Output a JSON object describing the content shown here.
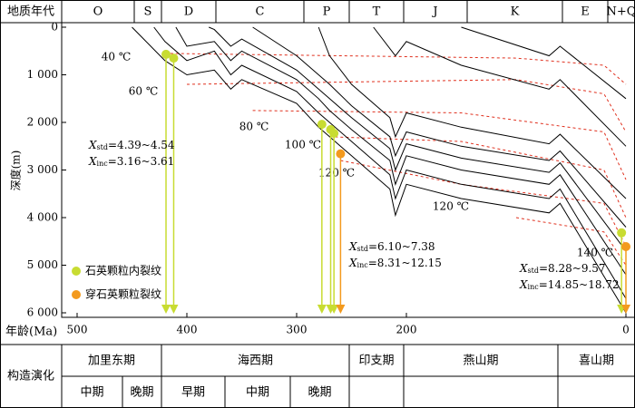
{
  "header": {
    "label": "地质年代",
    "periods": [
      "O",
      "S",
      "D",
      "C",
      "P",
      "T",
      "J",
      "K",
      "E",
      "N+Q"
    ]
  },
  "tectonics": {
    "label": "构造演化",
    "stages": [
      "加里东期",
      "海西期",
      "印支期",
      "燕山期",
      "喜山期"
    ],
    "substages": [
      "中期",
      "晚期",
      "早期",
      "中期",
      "晚期"
    ]
  },
  "chart_data": {
    "type": "line",
    "xlabel": "年龄(Ma)",
    "ylabel": "深度(m)",
    "xlim": [
      500,
      0
    ],
    "xticks": [
      500,
      400,
      300,
      200,
      0
    ],
    "ylim": [
      0,
      6000
    ],
    "yticks": [
      0,
      {
        "value": 1000,
        "label": "1 000"
      },
      {
        "value": 2000,
        "label": "2 000"
      },
      {
        "value": 3000,
        "label": "3 000"
      },
      {
        "value": 4000,
        "label": "4 000"
      },
      {
        "value": 5000,
        "label": "5 000"
      },
      {
        "value": 6000,
        "label": "6 000"
      }
    ],
    "burial_color": "#000000",
    "burial_lines": [
      {
        "x": [
          450,
          420,
          400,
          375,
          360,
          350,
          300,
          280,
          270,
          250,
          215,
          210,
          200,
          150,
          70,
          60,
          0
        ],
        "values": [
          0,
          700,
          1000,
          900,
          1300,
          1100,
          1600,
          2100,
          2300,
          2700,
          3400,
          3950,
          3300,
          3600,
          3900,
          3700,
          6000
        ]
      },
      {
        "x": [
          430,
          420,
          400,
          375,
          360,
          350,
          300,
          280,
          270,
          250,
          215,
          210,
          200,
          150,
          70,
          60,
          0
        ],
        "values": [
          0,
          300,
          700,
          500,
          1000,
          800,
          1350,
          1800,
          2000,
          2400,
          3100,
          3600,
          3000,
          3300,
          3600,
          3400,
          5700
        ]
      },
      {
        "x": [
          410,
          400,
          375,
          360,
          350,
          300,
          280,
          270,
          250,
          215,
          210,
          200,
          150,
          70,
          60,
          0
        ],
        "values": [
          0,
          400,
          300,
          700,
          500,
          1100,
          1500,
          1750,
          2150,
          2800,
          3300,
          2700,
          3000,
          3300,
          3100,
          5200
        ]
      },
      {
        "x": [
          380,
          375,
          360,
          350,
          300,
          280,
          270,
          250,
          215,
          210,
          200,
          150,
          70,
          60,
          0
        ],
        "values": [
          0,
          50,
          400,
          250,
          900,
          1300,
          1500,
          1900,
          2550,
          3000,
          2450,
          2750,
          3050,
          2850,
          4700
        ]
      },
      {
        "x": [
          340,
          300,
          280,
          270,
          250,
          215,
          210,
          200,
          150,
          70,
          60,
          0
        ],
        "values": [
          0,
          600,
          1000,
          1200,
          1650,
          2300,
          2700,
          2200,
          2500,
          2800,
          2600,
          4200
        ]
      },
      {
        "x": [
          280,
          270,
          250,
          215,
          210,
          200,
          150,
          70,
          60,
          0
        ],
        "values": [
          0,
          600,
          1200,
          1900,
          2300,
          1800,
          2100,
          2450,
          2250,
          3600
        ]
      },
      {
        "x": [
          230,
          210,
          200,
          150,
          70,
          60,
          0
        ],
        "values": [
          0,
          600,
          300,
          800,
          1300,
          1100,
          2500
        ]
      },
      {
        "x": [
          150,
          70,
          60,
          0
        ],
        "values": [
          0,
          600,
          400,
          1500
        ]
      }
    ],
    "isotherm_color": "#e0301e",
    "isotherms": [
      {
        "label": "40 ℃",
        "x": [
          420,
          100,
          20,
          0
        ],
        "values": [
          550,
          650,
          800,
          1200
        ]
      },
      {
        "label": "60 ℃",
        "x": [
          400,
          100,
          20,
          0
        ],
        "values": [
          1200,
          1100,
          1400,
          2200
        ]
      },
      {
        "label": "80 ℃",
        "x": [
          340,
          150,
          20,
          0
        ],
        "values": [
          1750,
          1800,
          2200,
          3200
        ]
      },
      {
        "label": "100 ℃",
        "x": [
          270,
          150,
          20,
          0
        ],
        "values": [
          2300,
          2400,
          3000,
          4000
        ]
      },
      {
        "label": "120 ℃",
        "x": [
          260,
          150,
          20,
          0
        ],
        "values": [
          2800,
          3300,
          3700,
          4600
        ]
      },
      {
        "label": "120 ℃"
      },
      {
        "label": "140 ℃",
        "x": [
          100,
          20,
          0
        ],
        "values": [
          4000,
          4300,
          5000
        ]
      }
    ],
    "series": [
      {
        "name": "石英颗粒内裂纹",
        "color": "#c8dc32",
        "x": [
          419,
          412,
          277,
          269,
          266,
          4
        ],
        "values": [
          570,
          650,
          2040,
          2150,
          2230,
          4320
        ]
      },
      {
        "name": "穿石英颗粒裂纹",
        "color": "#f39a1e",
        "x": [
          260,
          0
        ],
        "values": [
          2660,
          4610
        ]
      }
    ],
    "annotations": [
      {
        "lines": [
          {
            "symbol": "X",
            "sub": "std",
            "text": "=4.39~4.54"
          },
          {
            "symbol": "X",
            "sub": "inc",
            "text": "=3.16~3.61"
          }
        ]
      },
      {
        "lines": [
          {
            "symbol": "X",
            "sub": "std",
            "text": "=6.10~7.38"
          },
          {
            "symbol": "X",
            "sub": "inc",
            "text": "=8.31~12.15"
          }
        ]
      },
      {
        "lines": [
          {
            "symbol": "X",
            "sub": "std",
            "text": "=8.28~9.57"
          },
          {
            "symbol": "X",
            "sub": "inc",
            "text": "=14.85~18.72"
          }
        ]
      }
    ]
  }
}
